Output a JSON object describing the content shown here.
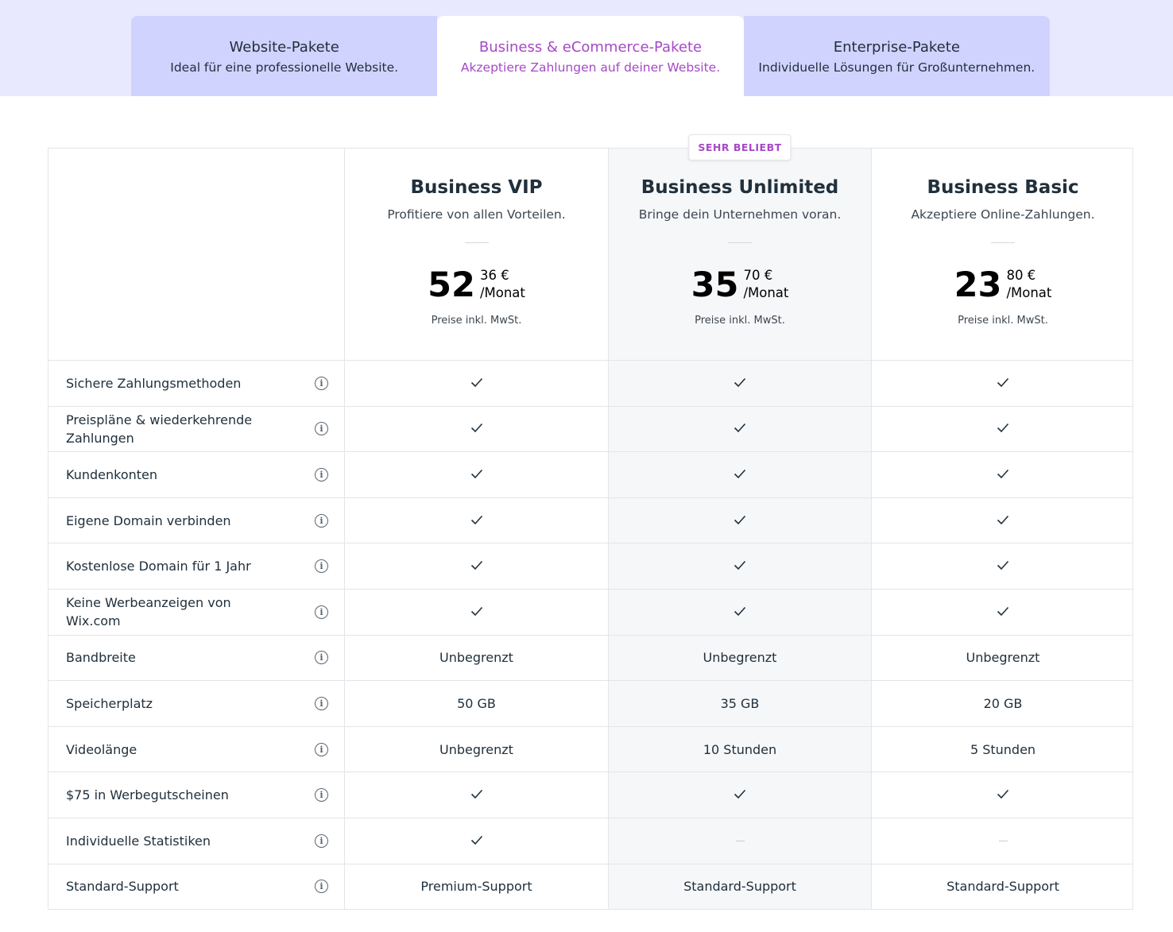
{
  "tabs": [
    {
      "title": "Website-Pakete",
      "subtitle": "Ideal für eine professionelle Website."
    },
    {
      "title": "Business & eCommerce-Pakete",
      "subtitle": "Akzeptiere Zahlungen auf deiner Website."
    },
    {
      "title": "Enterprise-Pakete",
      "subtitle": "Individuelle Lösungen für Großunternehmen."
    }
  ],
  "plans": [
    {
      "name": "Business VIP",
      "tagline": "Profitiere von allen Vorteilen.",
      "price": "52",
      "cents": "36 €",
      "period": "/Monat",
      "note": "Preise inkl. MwSt."
    },
    {
      "name": "Business Unlimited",
      "tagline": "Bringe dein Unternehmen voran.",
      "price": "35",
      "cents": "70 €",
      "period": "/Monat",
      "note": "Preise inkl. MwSt.",
      "badge": "SEHR BELIEBT"
    },
    {
      "name": "Business Basic",
      "tagline": "Akzeptiere Online-Zahlungen.",
      "price": "23",
      "cents": "80 €",
      "period": "/Monat",
      "note": "Preise inkl. MwSt."
    }
  ],
  "features": [
    {
      "label": "Sichere Zahlungsmethoden",
      "cells": [
        true,
        true,
        true
      ]
    },
    {
      "label": "Preispläne & wiederkehrende Zahlungen",
      "cells": [
        true,
        true,
        true
      ]
    },
    {
      "label": "Kundenkonten",
      "cells": [
        true,
        true,
        true
      ]
    },
    {
      "label": "Eigene Domain verbinden",
      "cells": [
        true,
        true,
        true
      ]
    },
    {
      "label": "Kostenlose Domain für 1 Jahr",
      "cells": [
        true,
        true,
        true
      ]
    },
    {
      "label": "Keine Werbeanzeigen von Wix.com",
      "cells": [
        true,
        true,
        true
      ]
    },
    {
      "label": "Bandbreite",
      "cells": [
        "Unbegrenzt",
        "Unbegrenzt",
        "Unbegrenzt"
      ]
    },
    {
      "label": "Speicherplatz",
      "cells": [
        "50 GB",
        "35 GB",
        "20 GB"
      ]
    },
    {
      "label": "Videolänge",
      "cells": [
        "Unbegrenzt",
        "10 Stunden",
        "5 Stunden"
      ]
    },
    {
      "label": "$75 in Werbegutscheinen",
      "cells": [
        true,
        true,
        true
      ]
    },
    {
      "label": "Individuelle Statistiken",
      "cells": [
        true,
        false,
        false
      ]
    },
    {
      "label": "Standard-Support",
      "cells": [
        "Premium-Support",
        "Standard-Support",
        "Standard-Support"
      ]
    }
  ]
}
